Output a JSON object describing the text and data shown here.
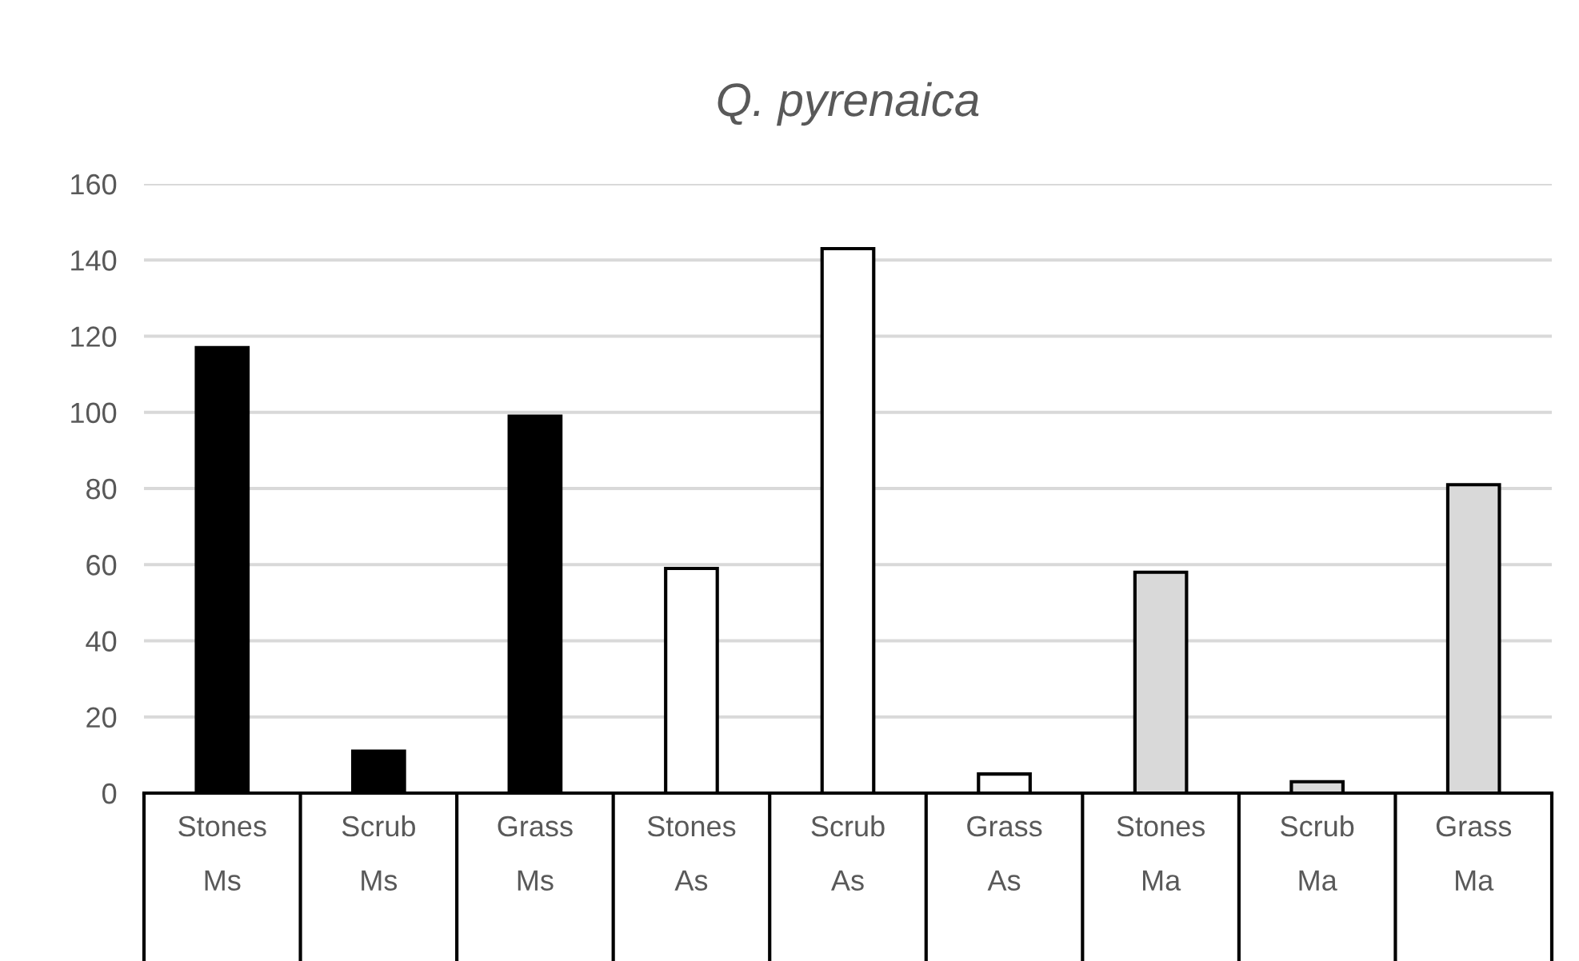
{
  "chart_data": {
    "type": "bar",
    "title": "Q. pyrenaica",
    "categories": [
      "Stones\nMs",
      "Scrub\nMs",
      "Grass\nMs",
      "Stones\nAs",
      "Scrub\nAs",
      "Grass\nAs",
      "Stones\nMa",
      "Scrub\nMa",
      "Grass\nMa"
    ],
    "values": [
      117,
      11,
      99,
      59,
      143,
      5,
      58,
      3,
      81
    ],
    "colors": [
      "#000000",
      "#000000",
      "#000000",
      "#ffffff",
      "#ffffff",
      "#ffffff",
      "#d9d9d9",
      "#d9d9d9",
      "#d9d9d9"
    ],
    "ylim": [
      0,
      160
    ],
    "yticks": [
      0,
      20,
      40,
      60,
      80,
      100,
      120,
      140,
      160
    ],
    "grid": "y",
    "legend": false
  }
}
